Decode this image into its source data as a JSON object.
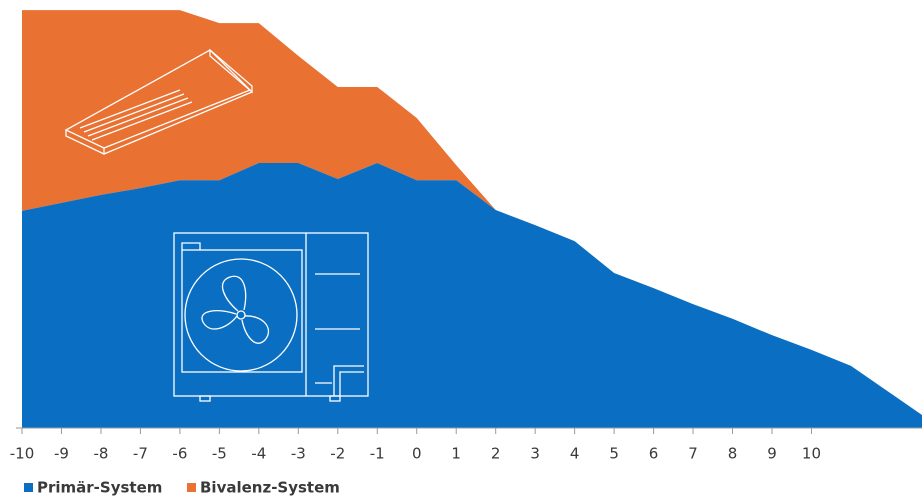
{
  "chart_data": {
    "type": "stacked_area",
    "x": [
      -10,
      -9,
      -8,
      -7,
      -6,
      -5,
      -4,
      -3,
      -2,
      -1,
      0,
      1,
      2,
      3,
      4,
      5,
      6,
      7,
      8,
      9,
      10,
      11,
      12.8
    ],
    "series": [
      {
        "name": "Primär-System",
        "color": "#0a6fc2",
        "values": [
          51.7,
          53.6,
          55.5,
          57.1,
          59,
          59,
          63.1,
          63.1,
          59.3,
          63.1,
          59,
          59,
          51.9,
          48.3,
          44.5,
          36.9,
          33.3,
          29.5,
          26,
          22.1,
          18.6,
          14.8,
          3.1
        ]
      },
      {
        "name": "Bivalenz-System",
        "color": "#e97132",
        "values": [
          47.8,
          45.9,
          44,
          42.4,
          40.5,
          37.4,
          33.3,
          25.5,
          21.9,
          18.1,
          14.8,
          3.6,
          0,
          0,
          0,
          0,
          0,
          0,
          0,
          0,
          0,
          0,
          0
        ]
      }
    ],
    "xlim": [
      -10,
      12.8
    ],
    "ylim": [
      0,
      100
    ],
    "xticks": [
      -10,
      -9,
      -8,
      -7,
      -6,
      -5,
      -4,
      -3,
      -2,
      -1,
      0,
      1,
      2,
      3,
      4,
      5,
      6,
      7,
      8,
      9,
      10
    ],
    "legend": "bottom-left"
  }
}
